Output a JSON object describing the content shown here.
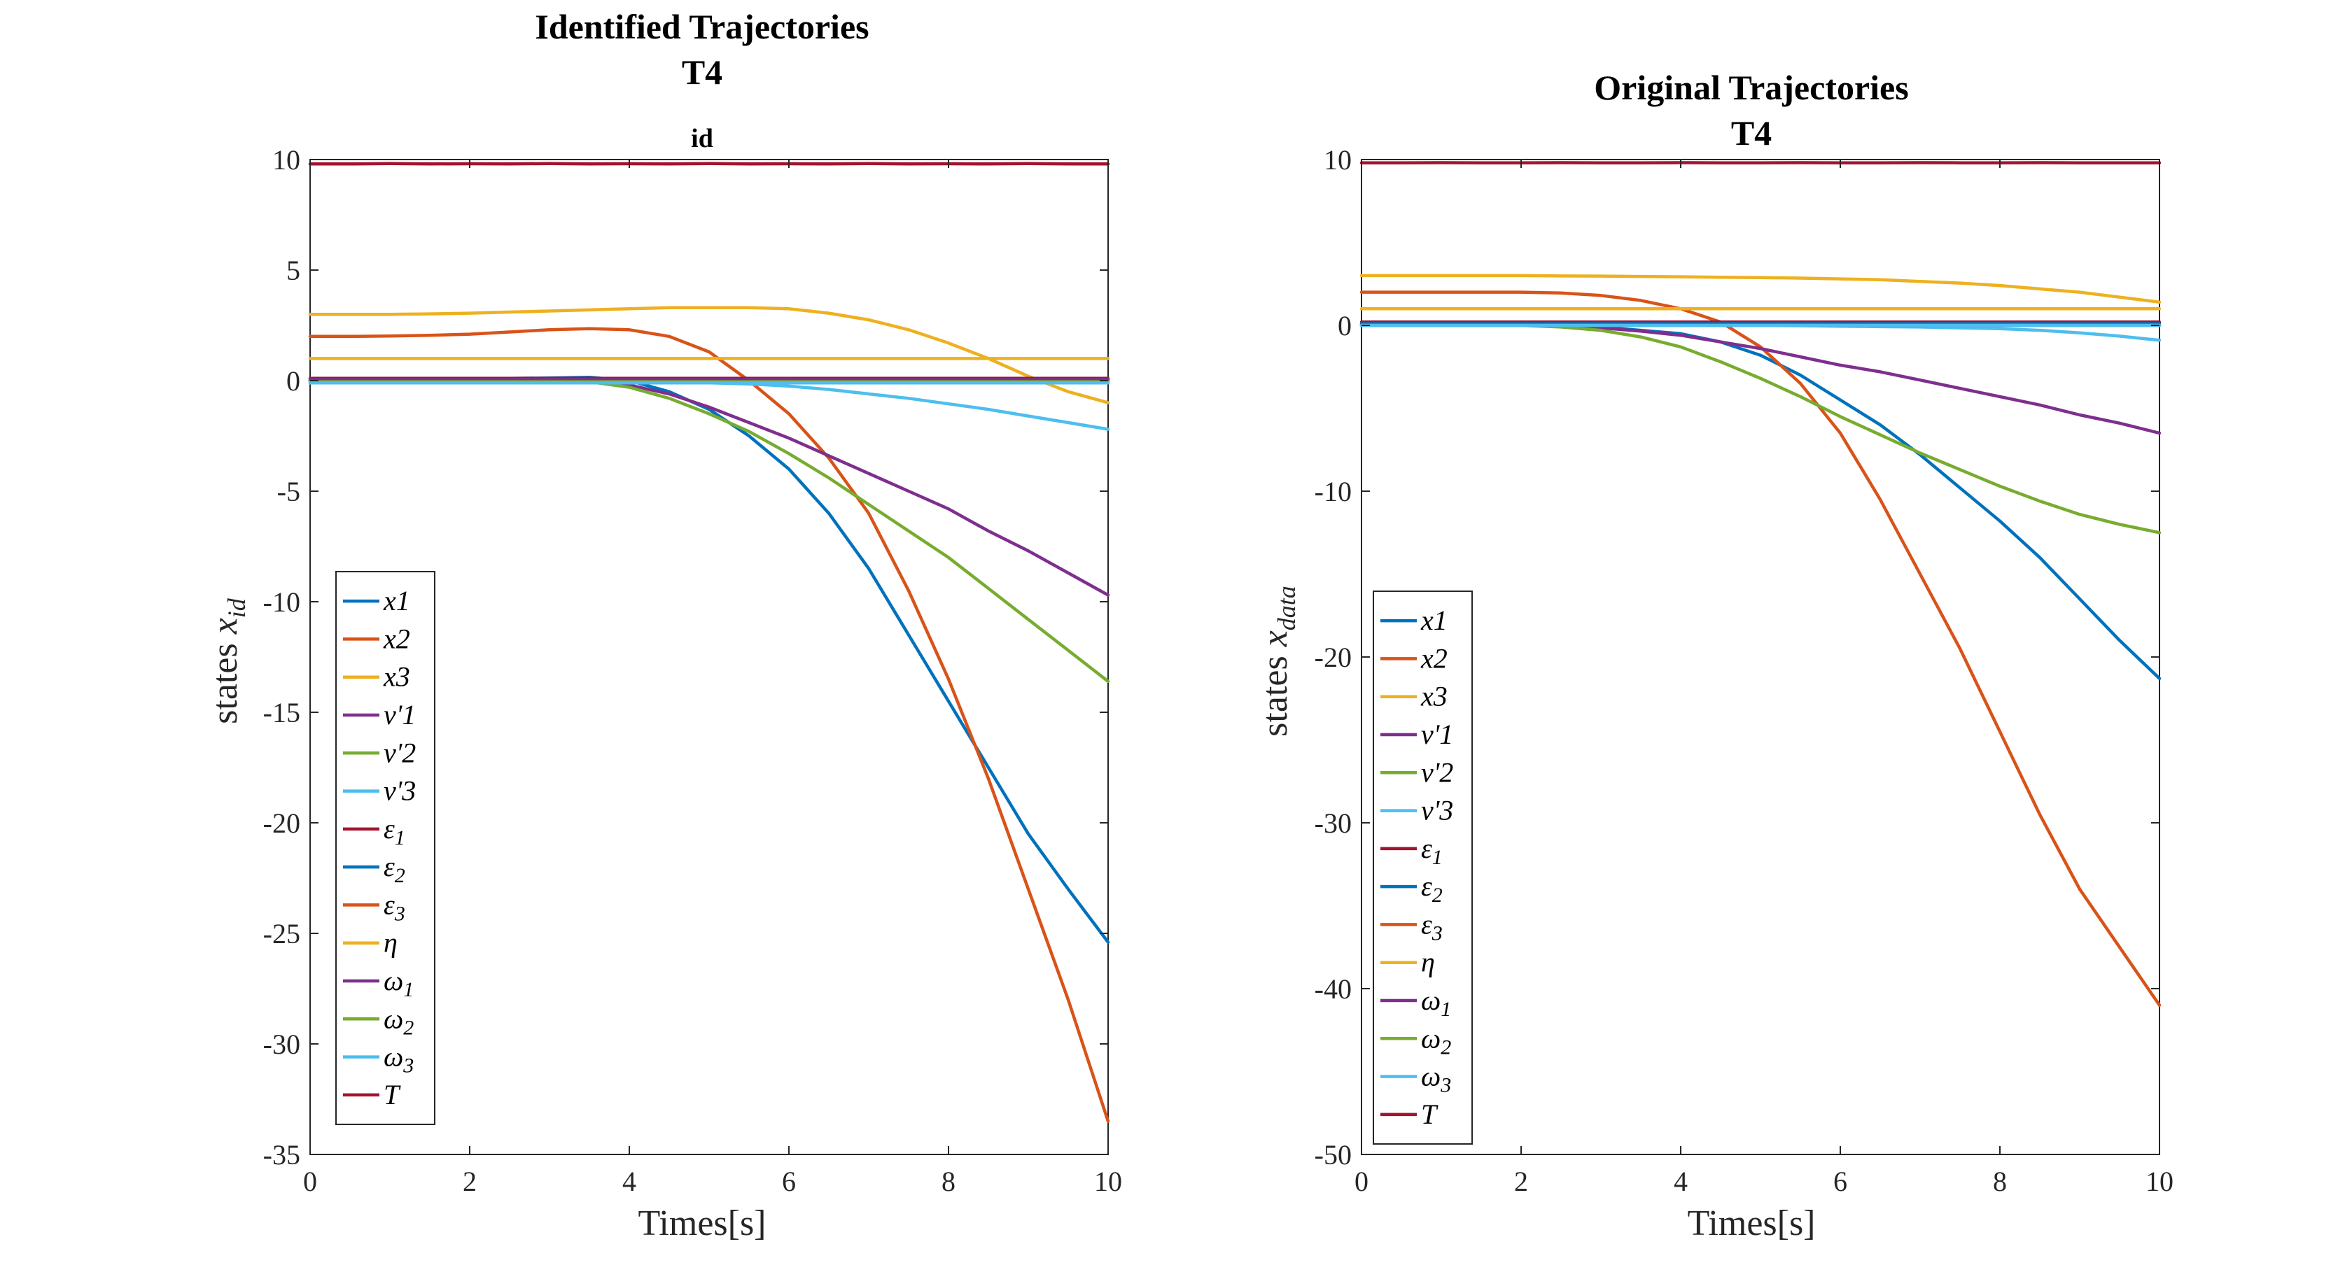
{
  "chart_data": [
    {
      "type": "line",
      "title": "Identified Trajectories",
      "title_line2": "T4",
      "subtitle": "id",
      "xlabel": "Times[s]",
      "ylabel": "states x_id",
      "xlim": [
        0,
        10
      ],
      "ylim": [
        -35,
        10
      ],
      "xticks": [
        0,
        2,
        4,
        6,
        8,
        10
      ],
      "yticks": [
        10,
        5,
        0,
        -5,
        -10,
        -15,
        -20,
        -25,
        -30,
        -35
      ],
      "grid": true,
      "legend_location": "bottom-left",
      "x": [
        0,
        0.5,
        1,
        1.5,
        2,
        2.5,
        3,
        3.5,
        4,
        4.5,
        5,
        5.5,
        6,
        6.5,
        7,
        7.5,
        8,
        8.5,
        9,
        9.5,
        10
      ],
      "series": [
        {
          "name": "x1",
          "color": "#0072BD",
          "values": [
            0,
            0,
            0,
            0.02,
            0.05,
            0.1,
            0.12,
            0.15,
            0,
            -0.5,
            -1.3,
            -2.5,
            -4,
            -6,
            -8.5,
            -11.5,
            -14.5,
            -17.5,
            -20.5,
            -23,
            -25.4
          ]
        },
        {
          "name": "x2",
          "color": "#D95319",
          "values": [
            2,
            2,
            2.02,
            2.05,
            2.1,
            2.2,
            2.3,
            2.35,
            2.3,
            2,
            1.3,
            0,
            -1.5,
            -3.5,
            -6,
            -9.5,
            -13.5,
            -18,
            -23,
            -28,
            -33.5
          ]
        },
        {
          "name": "x3",
          "color": "#EDB120",
          "values": [
            3,
            3,
            3,
            3.02,
            3.05,
            3.1,
            3.15,
            3.2,
            3.25,
            3.3,
            3.3,
            3.3,
            3.25,
            3.05,
            2.75,
            2.3,
            1.7,
            1,
            0.2,
            -0.5,
            -1
          ]
        },
        {
          "name": "v'1",
          "color": "#7E2F8E",
          "values": [
            0,
            0,
            0,
            0.02,
            0.05,
            0.08,
            0.1,
            0.05,
            -0.2,
            -0.6,
            -1.2,
            -1.9,
            -2.6,
            -3.4,
            -4.2,
            -5,
            -5.8,
            -6.8,
            -7.7,
            -8.7,
            -9.7
          ]
        },
        {
          "name": "v'2",
          "color": "#77AC30",
          "values": [
            0,
            0,
            0,
            0.02,
            0.05,
            0.05,
            0.02,
            -0.05,
            -0.3,
            -0.8,
            -1.5,
            -2.3,
            -3.3,
            -4.4,
            -5.6,
            -6.8,
            -8,
            -9.4,
            -10.8,
            -12.2,
            -13.6
          ]
        },
        {
          "name": "v'3",
          "color": "#4DBEEE",
          "values": [
            -0.1,
            -0.1,
            -0.1,
            -0.1,
            -0.1,
            -0.1,
            -0.1,
            -0.1,
            -0.1,
            -0.1,
            -0.1,
            -0.15,
            -0.25,
            -0.4,
            -0.6,
            -0.8,
            -1.05,
            -1.3,
            -1.6,
            -1.9,
            -2.2
          ]
        },
        {
          "name": "ε1",
          "color": "#A2142F",
          "values": [
            0.1,
            0.1,
            0.1,
            0.1,
            0.1,
            0.1,
            0.1,
            0.1,
            0.1,
            0.1,
            0.1,
            0.1,
            0.1,
            0.1,
            0.1,
            0.1,
            0.1,
            0.1,
            0.1,
            0.1,
            0.1
          ]
        },
        {
          "name": "ε2",
          "color": "#0072BD",
          "values": [
            0,
            0,
            0,
            0,
            0,
            0,
            0,
            0,
            0,
            0,
            0,
            0,
            0,
            0,
            0,
            0,
            0,
            0,
            0,
            0,
            0
          ]
        },
        {
          "name": "ε3",
          "color": "#D95319",
          "values": [
            0,
            0,
            0,
            0,
            0,
            0,
            0,
            0,
            0,
            0,
            0,
            0,
            0,
            0,
            0,
            0,
            0,
            0,
            0,
            0,
            0
          ]
        },
        {
          "name": "η",
          "color": "#EDB120",
          "values": [
            1,
            1,
            1,
            1,
            1,
            1,
            1,
            1,
            1,
            1,
            1,
            1,
            1,
            1,
            1,
            1,
            1,
            1,
            1,
            1,
            1
          ]
        },
        {
          "name": "ω1",
          "color": "#7E2F8E",
          "values": [
            0.05,
            0.05,
            0.05,
            0.05,
            0.05,
            0.05,
            0.05,
            0.05,
            0.05,
            0.05,
            0.05,
            0.05,
            0.05,
            0.05,
            0.05,
            0.05,
            0.05,
            0.05,
            0.05,
            0.05,
            0.05
          ]
        },
        {
          "name": "ω2",
          "color": "#77AC30",
          "values": [
            -0.05,
            -0.05,
            -0.05,
            -0.05,
            -0.05,
            -0.05,
            -0.05,
            -0.05,
            -0.05,
            -0.05,
            -0.05,
            -0.05,
            -0.05,
            -0.05,
            -0.05,
            -0.05,
            -0.05,
            -0.05,
            -0.05,
            -0.05,
            -0.05
          ]
        },
        {
          "name": "ω3",
          "color": "#4DBEEE",
          "values": [
            -0.1,
            -0.1,
            -0.1,
            -0.1,
            -0.1,
            -0.1,
            -0.1,
            -0.1,
            -0.1,
            -0.1,
            -0.1,
            -0.1,
            -0.1,
            -0.1,
            -0.1,
            -0.1,
            -0.1,
            -0.1,
            -0.1,
            -0.1,
            -0.1
          ]
        },
        {
          "name": "T",
          "color": "#A2142F",
          "values": [
            9.8,
            9.8,
            9.82,
            9.8,
            9.81,
            9.8,
            9.82,
            9.8,
            9.81,
            9.8,
            9.82,
            9.8,
            9.81,
            9.8,
            9.82,
            9.8,
            9.81,
            9.8,
            9.82,
            9.8,
            9.8
          ]
        }
      ]
    },
    {
      "type": "line",
      "title": "Original Trajectories",
      "title_line2": "T4",
      "subtitle": "",
      "xlabel": "Times[s]",
      "ylabel": "states x_data",
      "xlim": [
        0,
        10
      ],
      "ylim": [
        -50,
        10
      ],
      "xticks": [
        0,
        2,
        4,
        6,
        8,
        10
      ],
      "yticks": [
        10,
        0,
        -10,
        -20,
        -30,
        -40,
        -50
      ],
      "grid": true,
      "legend_location": "bottom-left",
      "x": [
        0,
        0.5,
        1,
        1.5,
        2,
        2.5,
        3,
        3.5,
        4,
        4.5,
        5,
        5.5,
        6,
        6.5,
        7,
        7.5,
        8,
        8.5,
        9,
        9.5,
        10
      ],
      "series": [
        {
          "name": "x1",
          "color": "#0072BD",
          "values": [
            0,
            0,
            0,
            0,
            0,
            -0.05,
            -0.1,
            -0.3,
            -0.5,
            -1,
            -1.8,
            -3,
            -4.5,
            -6,
            -7.8,
            -9.8,
            -11.8,
            -14,
            -16.5,
            -19,
            -21.3
          ]
        },
        {
          "name": "x2",
          "color": "#D95319",
          "values": [
            2,
            2,
            2,
            2,
            2,
            1.95,
            1.8,
            1.5,
            1,
            0.2,
            -1.3,
            -3.5,
            -6.5,
            -10.5,
            -15,
            -19.5,
            -24.5,
            -29.5,
            -34,
            -37.5,
            -41
          ]
        },
        {
          "name": "x3",
          "color": "#EDB120",
          "values": [
            3,
            3,
            3,
            3,
            3,
            2.98,
            2.97,
            2.95,
            2.93,
            2.9,
            2.88,
            2.85,
            2.8,
            2.75,
            2.65,
            2.55,
            2.4,
            2.2,
            2,
            1.7,
            1.4
          ]
        },
        {
          "name": "v'1",
          "color": "#7E2F8E",
          "values": [
            0,
            0,
            0,
            0,
            0,
            -0.05,
            -0.15,
            -0.35,
            -0.6,
            -1,
            -1.4,
            -1.9,
            -2.4,
            -2.8,
            -3.3,
            -3.8,
            -4.3,
            -4.8,
            -5.4,
            -5.9,
            -6.5
          ]
        },
        {
          "name": "v'2",
          "color": "#77AC30",
          "values": [
            0,
            0,
            0,
            0,
            0,
            -0.1,
            -0.3,
            -0.7,
            -1.3,
            -2.2,
            -3.2,
            -4.3,
            -5.5,
            -6.6,
            -7.7,
            -8.7,
            -9.7,
            -10.6,
            -11.4,
            -12,
            -12.5
          ]
        },
        {
          "name": "v'3",
          "color": "#4DBEEE",
          "values": [
            0,
            0,
            0,
            0,
            0,
            0,
            0,
            0,
            0,
            0,
            0,
            -0.02,
            -0.05,
            -0.08,
            -0.1,
            -0.15,
            -0.2,
            -0.3,
            -0.45,
            -0.65,
            -0.9
          ]
        },
        {
          "name": "ε1",
          "color": "#A2142F",
          "values": [
            0.2,
            0.2,
            0.2,
            0.2,
            0.2,
            0.2,
            0.2,
            0.2,
            0.2,
            0.2,
            0.2,
            0.2,
            0.2,
            0.2,
            0.2,
            0.2,
            0.2,
            0.2,
            0.2,
            0.2,
            0.2
          ]
        },
        {
          "name": "ε2",
          "color": "#0072BD",
          "values": [
            0.1,
            0.1,
            0.1,
            0.1,
            0.1,
            0.1,
            0.1,
            0.1,
            0.1,
            0.1,
            0.1,
            0.1,
            0.1,
            0.1,
            0.1,
            0.1,
            0.1,
            0.1,
            0.1,
            0.1,
            0.1
          ]
        },
        {
          "name": "ε3",
          "color": "#D95319",
          "values": [
            0,
            0,
            0,
            0,
            0,
            0,
            0,
            0,
            0,
            0,
            0,
            0,
            0,
            0,
            0,
            0,
            0,
            0,
            0,
            0,
            0
          ]
        },
        {
          "name": "η",
          "color": "#EDB120",
          "values": [
            1,
            1,
            1,
            1,
            1,
            1,
            1,
            1,
            1,
            1,
            1,
            1,
            1,
            1,
            1,
            1,
            1,
            1,
            1,
            1,
            1
          ]
        },
        {
          "name": "ω1",
          "color": "#7E2F8E",
          "values": [
            0,
            0,
            0,
            0,
            0,
            0,
            0,
            0,
            0,
            0,
            0,
            0,
            0,
            0,
            0,
            0,
            0,
            0,
            0,
            0,
            0
          ]
        },
        {
          "name": "ω2",
          "color": "#77AC30",
          "values": [
            0,
            0,
            0,
            0,
            0,
            0,
            0,
            0,
            0,
            0,
            0,
            0,
            0,
            0,
            0,
            0,
            0,
            0,
            0,
            0,
            0
          ]
        },
        {
          "name": "ω3",
          "color": "#4DBEEE",
          "values": [
            0,
            0,
            0,
            0,
            0,
            0,
            0,
            0,
            0,
            0,
            0,
            0,
            0,
            0,
            0,
            0,
            0,
            0,
            0,
            0,
            0
          ]
        },
        {
          "name": "T",
          "color": "#A2142F",
          "values": [
            9.8,
            9.8,
            9.81,
            9.8,
            9.8,
            9.81,
            9.8,
            9.8,
            9.81,
            9.8,
            9.8,
            9.81,
            9.8,
            9.8,
            9.81,
            9.8,
            9.8,
            9.81,
            9.8,
            9.8,
            9.8
          ]
        }
      ]
    }
  ]
}
